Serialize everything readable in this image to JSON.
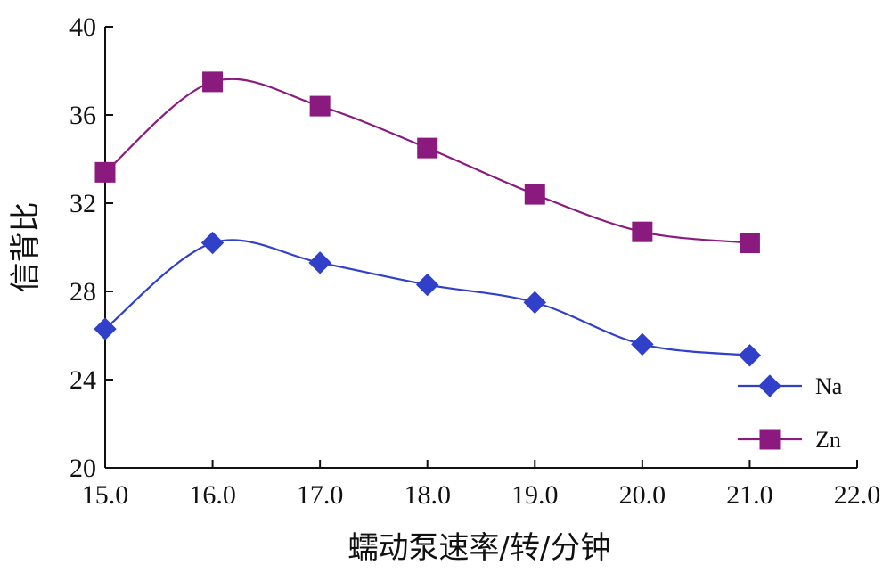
{
  "chart_data": {
    "type": "line",
    "title": "",
    "xlabel": "蠕动泵速率/转/分钟",
    "ylabel": "信背比",
    "xlim": [
      15.0,
      22.0
    ],
    "ylim": [
      20,
      40
    ],
    "xticks": [
      "15.0",
      "16.0",
      "17.0",
      "18.0",
      "19.0",
      "20.0",
      "21.0",
      "22.0"
    ],
    "yticks": [
      "20",
      "24",
      "28",
      "32",
      "36",
      "40"
    ],
    "x": [
      15.0,
      16.0,
      17.0,
      18.0,
      19.0,
      20.0,
      21.0
    ],
    "smooth": true,
    "grid": false,
    "legend_position": "bottom-right",
    "series": [
      {
        "name": "Na",
        "marker": "diamond",
        "color": "#3040c8",
        "values": [
          26.3,
          30.2,
          29.3,
          28.3,
          27.5,
          25.6,
          25.1
        ]
      },
      {
        "name": "Zn",
        "marker": "square",
        "color": "#8b1a7e",
        "values": [
          33.4,
          37.5,
          36.4,
          34.5,
          32.4,
          30.7,
          30.2
        ]
      }
    ]
  }
}
